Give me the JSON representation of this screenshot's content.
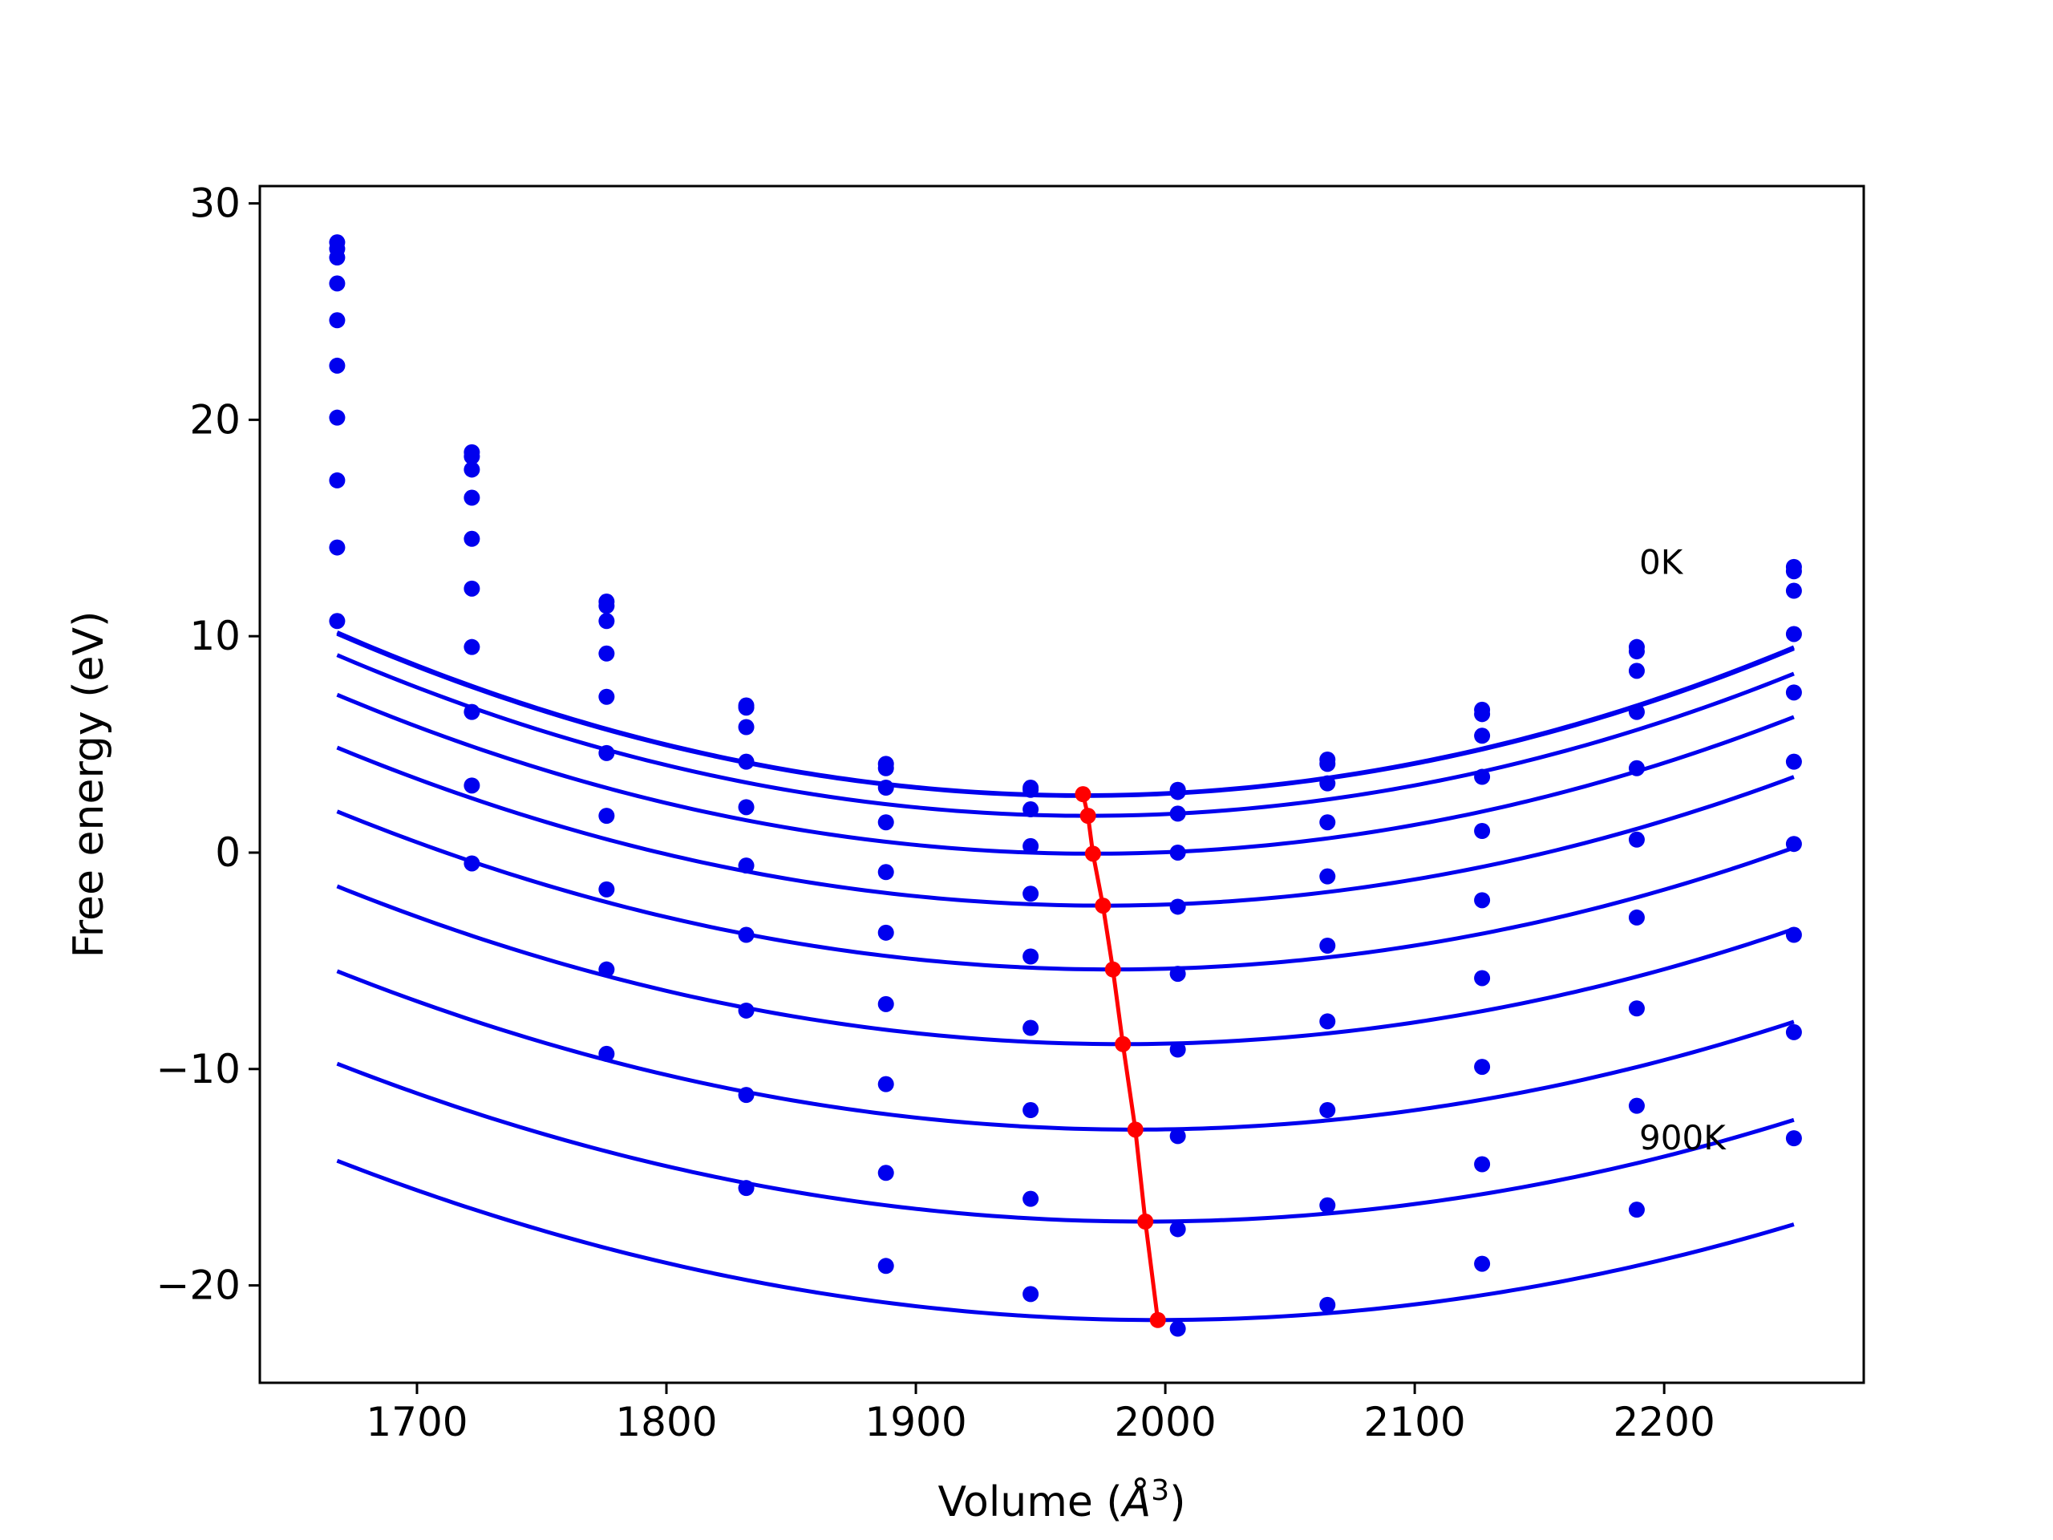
{
  "chart_data": {
    "type": "line",
    "title": "",
    "xlabel": "Volume (",
    "xlabel_sym": "Å",
    "xlabel_exp": "3",
    "xlabel_close": ")",
    "ylabel": "Free energy (eV)",
    "xlim": [
      1637,
      2280
    ],
    "ylim": [
      -24.5,
      30.8
    ],
    "xticks": [
      1700,
      1800,
      1900,
      2000,
      2100,
      2200
    ],
    "yticks": [
      -20,
      -10,
      0,
      10,
      20,
      30
    ],
    "xtick_labels": [
      "1700",
      "1800",
      "1900",
      "2000",
      "2100",
      "2200"
    ],
    "ytick_labels": [
      "−20",
      "−10",
      "0",
      "10",
      "20",
      "30"
    ],
    "grid": false,
    "legend": "none",
    "colors": {
      "curves": "#0000ee",
      "minima": "#ff0000",
      "frame": "#000000"
    },
    "annotations": [
      {
        "text": "0K",
        "x": 2190,
        "y": 13.4
      },
      {
        "text": "900K",
        "x": 2190,
        "y": -13.2
      }
    ],
    "x": [
      1668,
      1722,
      1776,
      1832,
      1888,
      1946,
      2005,
      2065,
      2127,
      2189,
      2252
    ],
    "series": [
      {
        "fit": [
          2.65,
          1967,
          8.42e-05
        ],
        "y": [
          28.2,
          18.5,
          11.6,
          6.8,
          4.1,
          3.0,
          2.9,
          4.3,
          6.6,
          9.5,
          13.2
        ]
      },
      {
        "fit": [
          2.62,
          1967,
          8.38e-05
        ],
        "y": [
          27.9,
          18.3,
          11.4,
          6.7,
          3.9,
          2.9,
          2.8,
          4.1,
          6.4,
          9.3,
          13.0
        ]
      },
      {
        "fit": [
          1.7,
          1969,
          8.2e-05
        ],
        "y": [
          27.5,
          17.7,
          10.7,
          5.8,
          3.0,
          2.0,
          1.8,
          3.2,
          5.4,
          8.4,
          12.1
        ]
      },
      {
        "fit": [
          -0.05,
          1971,
          8e-05
        ],
        "y": [
          26.3,
          16.4,
          9.2,
          4.2,
          1.4,
          0.3,
          0.0,
          1.4,
          3.5,
          6.5,
          10.1
        ]
      },
      {
        "fit": [
          -2.45,
          1975,
          7.75e-05
        ],
        "y": [
          24.6,
          14.5,
          7.2,
          2.1,
          -0.9,
          -1.9,
          -2.5,
          -1.1,
          1.0,
          3.9,
          7.4
        ]
      },
      {
        "fit": [
          -5.4,
          1979,
          7.55e-05
        ],
        "y": [
          22.5,
          12.2,
          4.6,
          -0.6,
          -3.7,
          -4.8,
          -5.6,
          -4.3,
          -2.2,
          0.6,
          4.2
        ]
      },
      {
        "fit": [
          -8.85,
          1983,
          7.35e-05
        ],
        "y": [
          20.1,
          9.5,
          1.7,
          -3.8,
          -7.0,
          -8.1,
          -9.1,
          -7.8,
          -5.8,
          -3.0,
          0.4
        ]
      },
      {
        "fit": [
          -12.8,
          1988,
          7.15e-05
        ],
        "y": [
          17.2,
          6.5,
          -1.7,
          -7.3,
          -10.7,
          -11.9,
          -13.1,
          -11.9,
          -9.9,
          -7.2,
          -3.8
        ]
      },
      {
        "fit": [
          -17.05,
          1992,
          6.95e-05
        ],
        "y": [
          14.1,
          3.1,
          -5.4,
          -11.2,
          -14.8,
          -16.0,
          -17.4,
          -16.3,
          -14.4,
          -11.7,
          -8.3
        ]
      },
      {
        "fit": [
          -21.6,
          1997,
          6.8e-05
        ],
        "y": [
          10.7,
          -0.5,
          -9.3,
          -15.5,
          -19.1,
          -20.4,
          -22.0,
          -20.9,
          -19.0,
          -16.5,
          -13.2
        ]
      }
    ],
    "minima": {
      "x": [
        1967,
        1969,
        1971,
        1975,
        1979,
        1983,
        1988,
        1992,
        1997
      ],
      "y": [
        2.7,
        1.7,
        -0.05,
        -2.45,
        -5.4,
        -8.85,
        -12.8,
        -17.05,
        -21.6
      ]
    }
  }
}
